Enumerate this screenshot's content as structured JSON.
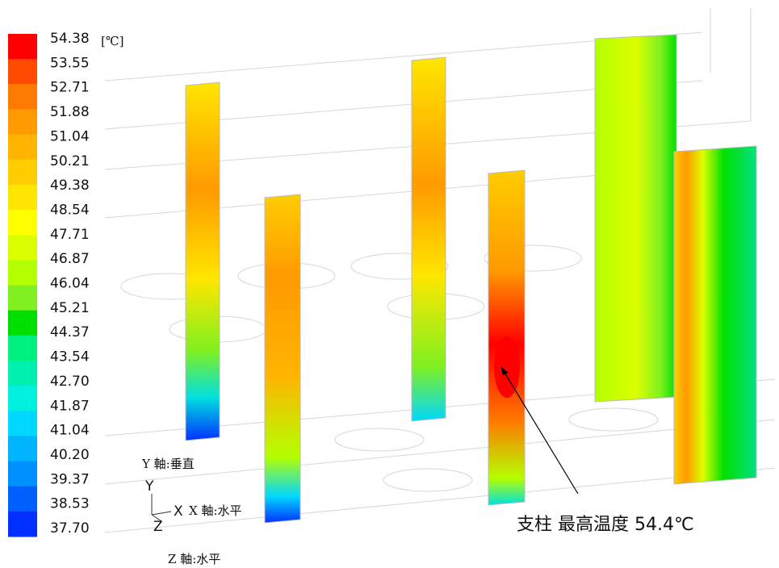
{
  "colorbar": {
    "unit": "[℃]",
    "levels": [
      "54.38",
      "53.55",
      "52.71",
      "51.88",
      "51.04",
      "50.21",
      "49.38",
      "48.54",
      "47.71",
      "46.87",
      "46.04",
      "45.21",
      "44.37",
      "43.54",
      "42.70",
      "41.87",
      "41.04",
      "40.20",
      "39.37",
      "38.53",
      "37.70"
    ],
    "colors": [
      "#ff0000",
      "#ff4a00",
      "#ff7a00",
      "#ff9a00",
      "#ffb400",
      "#ffcd00",
      "#ffe600",
      "#ffff00",
      "#dcff00",
      "#b4ff00",
      "#80f020",
      "#00e000",
      "#00f080",
      "#00f0b0",
      "#00f0e0",
      "#00d8ff",
      "#00b4ff",
      "#0090ff",
      "#0060ff",
      "#0030ff"
    ]
  },
  "axes": {
    "y_axis": "Y 軸:垂直",
    "x_axis": "X 軸:水平",
    "z_axis": "Z 軸:水平",
    "y_glyph": "Y",
    "x_glyph": "X",
    "z_glyph": "Z"
  },
  "annotation": "支柱 最高温度 54.4℃"
}
